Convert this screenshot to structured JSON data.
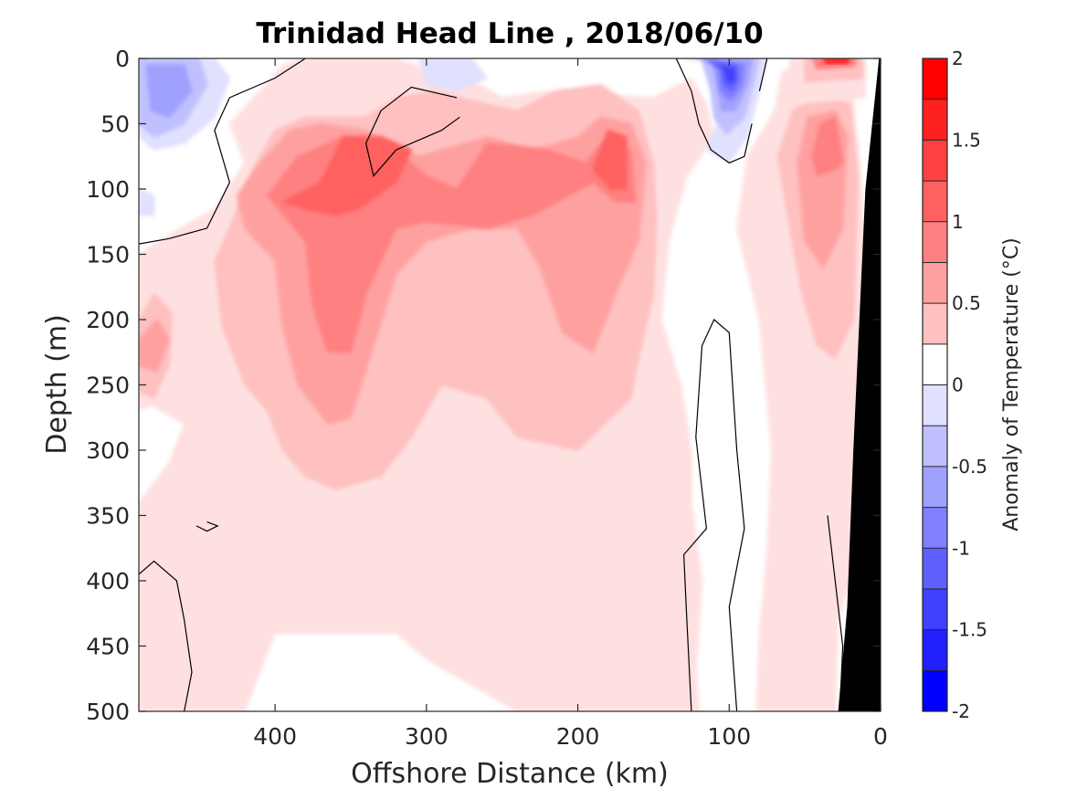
{
  "chart_data": {
    "type": "heatmap",
    "title": "Trinidad Head Line , 2018/06/10",
    "xlabel": "Offshore Distance (km)",
    "ylabel": "Depth (m)",
    "xlim": [
      490,
      0
    ],
    "ylim": [
      0,
      500
    ],
    "x_ticks": [
      400,
      300,
      200,
      100,
      0
    ],
    "y_ticks": [
      0,
      50,
      100,
      150,
      200,
      250,
      300,
      350,
      400,
      450,
      500
    ],
    "y_reversed": true,
    "colorbar": {
      "label": "Anomaly of Temperature (°C)",
      "range": [
        -2,
        2
      ],
      "step": 0.25,
      "ticks": [
        2,
        1.5,
        1,
        0.5,
        0,
        -0.5,
        -1,
        -1.5,
        -2
      ],
      "colors": {
        "-2.0": "#0000ff",
        "-1.75": "#2020ff",
        "-1.5": "#4040ff",
        "-1.25": "#6060ff",
        "-1.0": "#8080ff",
        "-0.75": "#a0a0ff",
        "-0.5": "#c0c0ff",
        "-0.25": "#e0e0ff",
        "0": "#ffffff",
        "0.25": "#ffe0e0",
        "0.5": "#ffc0c0",
        "0.75": "#ffa0a0",
        "1.0": "#ff8080",
        "1.25": "#ff6060",
        "1.5": "#ff4040",
        "1.75": "#ff2020",
        "2.0": "#ff0000"
      }
    },
    "features": [
      {
        "name": "subsurface warm core",
        "x_km": 360,
        "depth_m": 100,
        "anomaly": 1.25
      },
      {
        "name": "warm core",
        "x_km": 175,
        "depth_m": 75,
        "anomaly": 1.0
      },
      {
        "name": "nearshore warm core",
        "x_km": 35,
        "depth_m": 60,
        "anomaly": 0.75
      },
      {
        "name": "surface warm patch",
        "x_km": 30,
        "depth_m": 0,
        "anomaly": 1.75
      },
      {
        "name": "surface cold patch",
        "x_km": 102,
        "depth_m": 15,
        "anomaly": -1.5
      },
      {
        "name": "offshore cold patch",
        "x_km": 475,
        "depth_m": 30,
        "anomaly": -0.75
      },
      {
        "name": "deep warm patch",
        "x_km": 480,
        "depth_m": 210,
        "anomaly": 0.5
      }
    ],
    "grid": false
  }
}
